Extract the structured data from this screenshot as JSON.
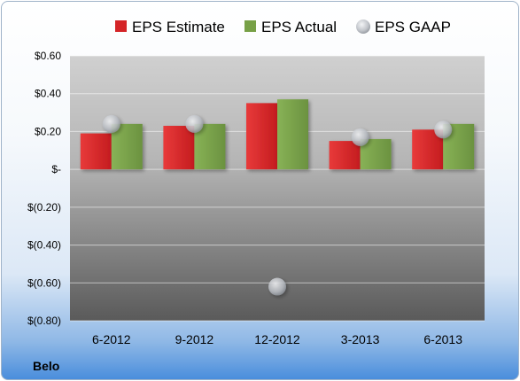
{
  "company": "Belo",
  "colors": {
    "estimate": "#d42427",
    "actual": "#77a046",
    "gaap": "#c9cdd3"
  },
  "chart_data": {
    "type": "bar",
    "categories": [
      "6-2012",
      "9-2012",
      "12-2012",
      "3-2013",
      "6-2013"
    ],
    "series": [
      {
        "name": "EPS Estimate",
        "kind": "bar",
        "values": [
          0.19,
          0.23,
          0.35,
          0.15,
          0.21
        ]
      },
      {
        "name": "EPS Actual",
        "kind": "bar",
        "values": [
          0.24,
          0.24,
          0.37,
          0.16,
          0.24
        ]
      },
      {
        "name": "EPS GAAP",
        "kind": "marker",
        "values": [
          0.24,
          0.24,
          -0.62,
          0.17,
          0.21
        ]
      }
    ],
    "ylim": [
      -0.8,
      0.6
    ],
    "yticks": [
      0.6,
      0.4,
      0.2,
      0,
      -0.2,
      -0.4,
      -0.6,
      -0.8
    ],
    "ytick_labels": [
      "$0.60",
      "$0.40",
      "$0.20",
      "$-",
      "$(0.20)",
      "$(0.40)",
      "$(0.60)",
      "$(0.80)"
    ],
    "grid": true,
    "legend_position": "top"
  }
}
